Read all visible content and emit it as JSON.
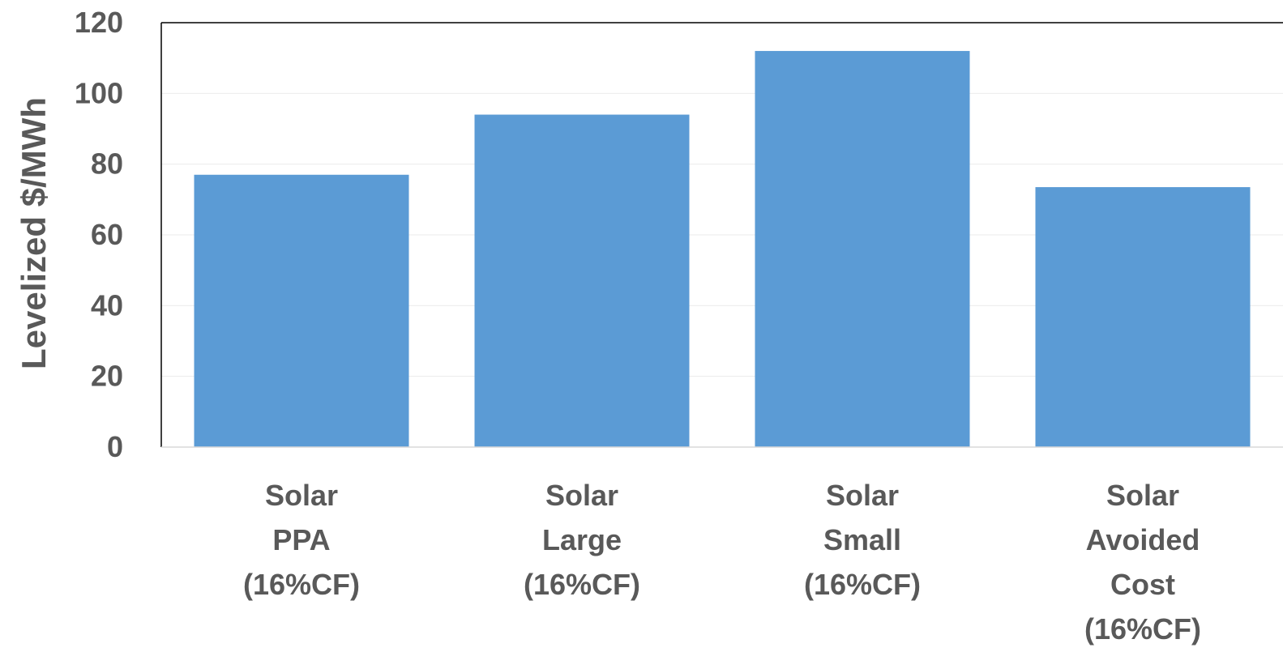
{
  "chart_data": {
    "type": "bar",
    "title": "",
    "xlabel": "",
    "ylabel": "Levelized $/MWh",
    "ylim": [
      0,
      120
    ],
    "yticks": [
      0,
      20,
      40,
      60,
      80,
      100,
      120
    ],
    "grid": true,
    "legend": "none",
    "categories": [
      [
        "Solar",
        "PPA",
        "(16%CF)"
      ],
      [
        "Solar",
        "Large",
        "(16%CF)"
      ],
      [
        "Solar",
        "Small",
        "(16%CF)"
      ],
      [
        "Solar",
        "Avoided",
        "Cost",
        "(16%CF)"
      ]
    ],
    "values": [
      77,
      94,
      112,
      73.5
    ],
    "colors": {
      "bar": "#5B9BD5",
      "grid": "#EBEBEB",
      "axis": "#000000",
      "text": "#595959"
    }
  }
}
